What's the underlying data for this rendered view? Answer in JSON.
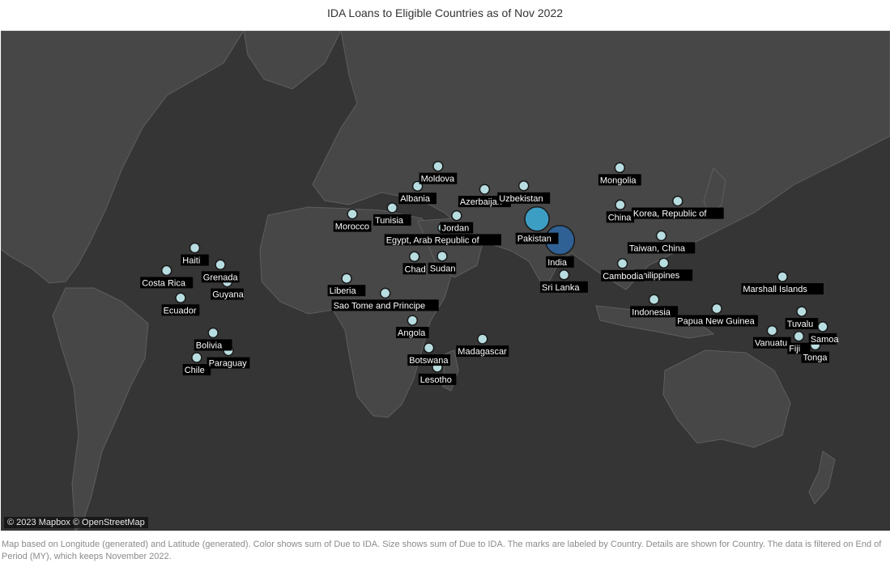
{
  "title": "IDA Loans to Eligible Countries as of Nov 2022",
  "attribution": "© 2023 Mapbox © OpenStreetMap",
  "caption": "Map based on Longitude (generated) and Latitude (generated).  Color shows sum of Due to IDA.  Size shows sum of Due to IDA.  The marks are labeled by Country.  Details are shown for Country. The data is filtered on End of Period (MY), which keeps November 2022.",
  "legend_colors": {
    "low": "#b8dde0",
    "mid": "#3d9ec4",
    "high": "#2f6195",
    "land": "#474747",
    "ocean": "#353535",
    "border": "#666666"
  },
  "countries": [
    {
      "name": "Moldova",
      "lon": 28.5,
      "lat": 47.2,
      "tier": "low"
    },
    {
      "name": "Albania",
      "lon": 20.0,
      "lat": 41.2,
      "tier": "low"
    },
    {
      "name": "Tunisia",
      "lon": 9.5,
      "lat": 34.0,
      "tier": "low"
    },
    {
      "name": "Morocco",
      "lon": -7.0,
      "lat": 31.8,
      "tier": "low"
    },
    {
      "name": "Azerbaijan",
      "lon": 47.8,
      "lat": 40.2,
      "tier": "low"
    },
    {
      "name": "Uzbekistan",
      "lon": 64.0,
      "lat": 41.3,
      "tier": "low"
    },
    {
      "name": "Mongolia",
      "lon": 103.8,
      "lat": 46.8,
      "tier": "low"
    },
    {
      "name": "China",
      "lon": 104.0,
      "lat": 35.0,
      "tier": "low"
    },
    {
      "name": "Korea, Republic of",
      "lon": 127.8,
      "lat": 36.3,
      "tier": "low"
    },
    {
      "name": "Jordan",
      "lon": 36.2,
      "lat": 31.2,
      "tier": "low"
    },
    {
      "name": "Egypt, Arab Republic of",
      "lon": 30.5,
      "lat": 26.8,
      "tier": "low"
    },
    {
      "name": "Pakistan",
      "lon": 69.5,
      "lat": 30.0,
      "tier": "mid"
    },
    {
      "name": "India",
      "lon": 79.0,
      "lat": 22.0,
      "tier": "high"
    },
    {
      "name": "Taiwan, China",
      "lon": 121.0,
      "lat": 23.7,
      "tier": "low"
    },
    {
      "name": "Philippines",
      "lon": 122.0,
      "lat": 12.8,
      "tier": "low"
    },
    {
      "name": "Cambodia",
      "lon": 104.9,
      "lat": 12.6,
      "tier": "low"
    },
    {
      "name": "Sri Lanka",
      "lon": 80.7,
      "lat": 7.9,
      "tier": "low"
    },
    {
      "name": "Chad",
      "lon": 18.7,
      "lat": 15.4,
      "tier": "low"
    },
    {
      "name": "Sudan",
      "lon": 30.2,
      "lat": 15.6,
      "tier": "low"
    },
    {
      "name": "Liberia",
      "lon": -9.4,
      "lat": 6.4,
      "tier": "low"
    },
    {
      "name": "Sao Tome and Principe",
      "lon": 6.6,
      "lat": 0.2,
      "tier": "low"
    },
    {
      "name": "Angola",
      "lon": 17.9,
      "lat": -11.2,
      "tier": "low"
    },
    {
      "name": "Botswana",
      "lon": 24.7,
      "lat": -22.3,
      "tier": "low"
    },
    {
      "name": "Lesotho",
      "lon": 28.2,
      "lat": -29.6,
      "tier": "low"
    },
    {
      "name": "Madagascar",
      "lon": 46.9,
      "lat": -18.8,
      "tier": "low"
    },
    {
      "name": "Haiti",
      "lon": -72.3,
      "lat": 18.9,
      "tier": "low"
    },
    {
      "name": "Grenada",
      "lon": -61.7,
      "lat": 12.1,
      "tier": "low"
    },
    {
      "name": "Costa Rica",
      "lon": -84.0,
      "lat": 9.7,
      "tier": "low"
    },
    {
      "name": "Guyana",
      "lon": -58.9,
      "lat": 4.9,
      "tier": "low"
    },
    {
      "name": "Ecuador",
      "lon": -78.2,
      "lat": -1.8,
      "tier": "low"
    },
    {
      "name": "Bolivia",
      "lon": -64.7,
      "lat": -16.3,
      "tier": "low"
    },
    {
      "name": "Chile",
      "lon": -71.5,
      "lat": -26.0,
      "tier": "low"
    },
    {
      "name": "Paraguay",
      "lon": -58.4,
      "lat": -23.4,
      "tier": "low"
    },
    {
      "name": "Indonesia",
      "lon": 118.0,
      "lat": -2.5,
      "tier": "low"
    },
    {
      "name": "Papua New Guinea",
      "lon": 144.0,
      "lat": -6.3,
      "tier": "low"
    },
    {
      "name": "Marshall Islands",
      "lon": 171.2,
      "lat": 7.1,
      "tier": "low"
    },
    {
      "name": "Tuvalu",
      "lon": 179.2,
      "lat": -7.5,
      "tier": "low"
    },
    {
      "name": "Vanuatu",
      "lon": 166.9,
      "lat": -15.4,
      "tier": "low"
    },
    {
      "name": "Fiji",
      "lon": 178.0,
      "lat": -17.7,
      "tier": "low"
    },
    {
      "name": "Samoa",
      "lon": -172.1,
      "lat": -13.8,
      "tier": "low"
    },
    {
      "name": "Tonga",
      "lon": -175.2,
      "lat": -21.2,
      "tier": "low"
    }
  ]
}
